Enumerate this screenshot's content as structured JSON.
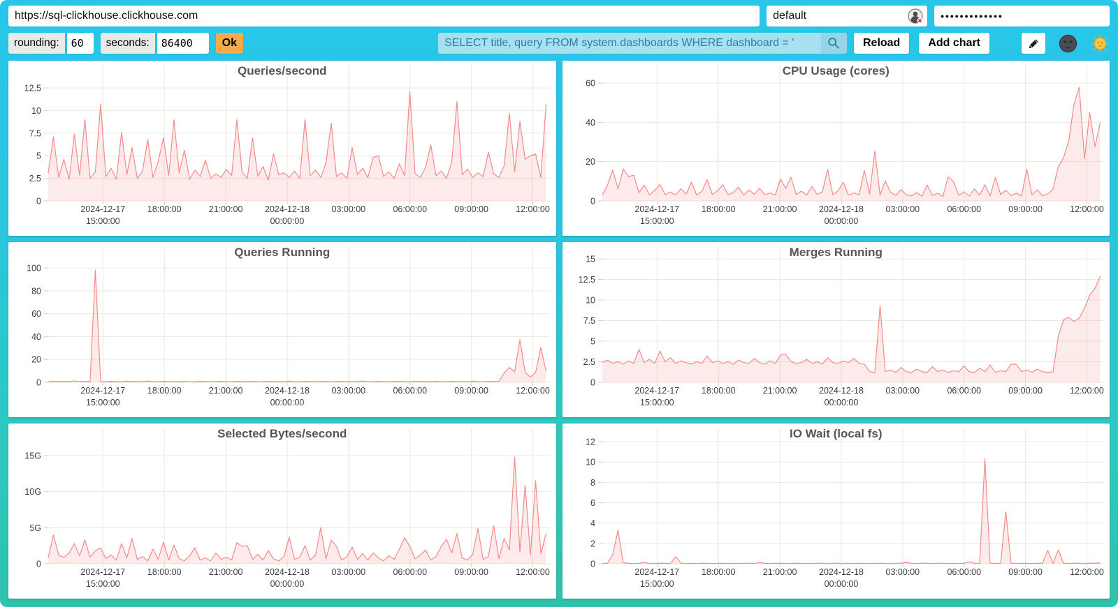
{
  "toolbar": {
    "url": "https://sql-clickhouse.clickhouse.com",
    "user": "default",
    "password_mask": "•••••••••••••",
    "rounding_label": "rounding:",
    "rounding_value": "60",
    "seconds_label": "seconds:",
    "seconds_value": "86400",
    "ok_label": "Ok",
    "query_value": "SELECT title, query FROM system.dashboards WHERE dashboard = '",
    "reload_label": "Reload",
    "add_chart_label": "Add chart",
    "icons": {
      "user_status": "user-icon-with-red-x",
      "search": "magnifier-icon",
      "edit": "pencil-icon",
      "dark_theme": "new-moon-face-icon",
      "light_theme": "sun-with-face-icon"
    }
  },
  "colors": {
    "line": "#F58A8A",
    "fill": "rgba(245,138,138,0.17)",
    "grid": "#ECEADC",
    "tick": "#CFCFC2",
    "axis_text": "#3C3C3C",
    "title_text": "#575757",
    "accent_ok": "#F5AB49",
    "query_bg": "#A8DFF1",
    "query_text": "#2980A2",
    "bg_top": "#28C6E9",
    "bg_bottom": "#2FC2AB"
  },
  "chart_data": {
    "type": "area",
    "grid": true,
    "legend": "none",
    "x_ticks": {
      "fracs": [
        0.11,
        0.2333,
        0.3567,
        0.48,
        0.6033,
        0.7267,
        0.85,
        0.9733
      ],
      "labels": [
        [
          "2024-12-17",
          "15:00:00"
        ],
        [
          "18:00:00"
        ],
        [
          "21:00:00"
        ],
        [
          "2024-12-18",
          "00:00:00"
        ],
        [
          "03:00:00"
        ],
        [
          "06:00:00"
        ],
        [
          "09:00:00"
        ],
        [
          "12:00:00"
        ]
      ]
    },
    "charts": [
      {
        "title": "Queries/second",
        "y_ticks": {
          "values": [
            0,
            2.5,
            5,
            7.5,
            10,
            12.5
          ],
          "labels": [
            "0",
            "2.5",
            "5",
            "7.5",
            "10",
            "12.5"
          ]
        },
        "ylim": [
          0,
          12.5
        ],
        "plot_top": 39,
        "values": [
          3.1,
          7.1,
          2.6,
          4.6,
          2.4,
          7.4,
          2.8,
          9.0,
          2.5,
          3.2,
          10.7,
          2.7,
          3.6,
          2.4,
          7.6,
          2.9,
          5.9,
          2.5,
          3.3,
          6.8,
          2.6,
          4.4,
          7.0,
          2.8,
          9.0,
          3.1,
          5.6,
          2.4,
          3.4,
          2.7,
          4.5,
          2.5,
          3.0,
          2.6,
          3.5,
          2.8,
          9.0,
          3.2,
          2.5,
          7.0,
          2.7,
          3.8,
          2.3,
          5.2,
          2.9,
          3.1,
          2.6,
          3.3,
          2.5,
          9.0,
          2.8,
          3.4,
          2.6,
          4.2,
          8.6,
          2.7,
          3.1,
          2.5,
          5.9,
          2.9,
          3.6,
          2.6,
          4.8,
          5.0,
          2.7,
          3.2,
          2.5,
          4.1,
          2.8,
          12.1,
          3.0,
          2.6,
          3.7,
          6.2,
          2.8,
          3.3,
          2.5,
          4.3,
          11.0,
          2.9,
          3.5,
          2.6,
          3.1,
          2.7,
          5.4,
          3.0,
          2.6,
          3.9,
          9.7,
          3.2,
          8.8,
          4.6,
          5.0,
          5.2,
          2.6,
          10.7
        ]
      },
      {
        "title": "CPU Usage (cores)",
        "y_ticks": {
          "values": [
            0,
            20,
            40,
            60
          ],
          "labels": [
            "0",
            "20",
            "40",
            "60"
          ]
        },
        "ylim": [
          0,
          60
        ],
        "plot_top": 32,
        "values": [
          3.0,
          8.2,
          15.8,
          6.1,
          16.2,
          12.4,
          13.1,
          4.2,
          8.0,
          3.1,
          5.4,
          8.3,
          3.2,
          4.5,
          2.9,
          6.2,
          3.4,
          9.6,
          3.0,
          4.8,
          10.8,
          3.3,
          5.1,
          8.2,
          3.1,
          4.3,
          7.0,
          3.0,
          5.6,
          3.4,
          6.4,
          3.1,
          4.0,
          2.9,
          11.2,
          6.3,
          12.1,
          3.2,
          5.0,
          3.0,
          7.3,
          3.3,
          4.6,
          16.0,
          3.1,
          5.2,
          9.4,
          2.9,
          4.1,
          3.2,
          15.5,
          3.6,
          25.5,
          3.0,
          10.2,
          4.4,
          2.8,
          5.8,
          3.1,
          2.6,
          4.2,
          2.4,
          8.1,
          2.7,
          3.9,
          2.3,
          12.3,
          9.8,
          2.8,
          4.6,
          2.5,
          6.1,
          3.0,
          8.2,
          2.6,
          12.0,
          3.3,
          5.4,
          2.7,
          4.0,
          2.5,
          16.2,
          3.1,
          5.7,
          2.6,
          3.4,
          6.0,
          17.5,
          22.0,
          30.5,
          49.3,
          57.8,
          21.5,
          45.0,
          27.6,
          39.8
        ]
      },
      {
        "title": "Queries Running",
        "y_ticks": {
          "values": [
            0,
            20,
            40,
            60,
            80,
            100
          ],
          "labels": [
            "0",
            "20",
            "40",
            "60",
            "80",
            "100"
          ]
        },
        "ylim": [
          0,
          100
        ],
        "plot_top": 37,
        "values": [
          0.6,
          1.0,
          0.5,
          0.8,
          0.6,
          1.2,
          0.5,
          0.9,
          0.6,
          98.0,
          0.7,
          0.5,
          0.8,
          0.6,
          0.5,
          0.9,
          0.6,
          0.7,
          0.5,
          1.1,
          0.6,
          0.5,
          0.8,
          0.6,
          0.7,
          0.5,
          0.9,
          0.6,
          0.5,
          0.8,
          0.6,
          0.7,
          0.5,
          1.0,
          0.6,
          0.5,
          0.8,
          0.7,
          0.5,
          0.9,
          0.6,
          0.5,
          0.8,
          0.6,
          0.7,
          0.5,
          1.0,
          0.6,
          0.5,
          0.8,
          0.6,
          0.7,
          0.5,
          0.9,
          0.6,
          0.5,
          0.8,
          0.6,
          0.7,
          0.5,
          1.1,
          0.6,
          0.5,
          0.8,
          0.6,
          0.7,
          0.5,
          0.9,
          0.6,
          0.5,
          0.8,
          0.6,
          0.7,
          0.5,
          1.0,
          0.6,
          0.5,
          0.8,
          0.6,
          0.7,
          0.5,
          0.9,
          0.6,
          0.5,
          0.8,
          0.6,
          0.9,
          8.2,
          13.0,
          9.2,
          37.2,
          8.8,
          4.6,
          8.4,
          30.5,
          9.6
        ]
      },
      {
        "title": "Merges Running",
        "y_ticks": {
          "values": [
            0,
            2.5,
            5,
            7.5,
            10,
            12.5,
            15
          ],
          "labels": [
            "0",
            "2.5",
            "5",
            "7.5",
            "10",
            "12.5",
            "15"
          ]
        },
        "ylim": [
          0,
          15
        ],
        "plot_top": 24,
        "values": [
          2.4,
          2.7,
          2.3,
          2.5,
          2.2,
          2.6,
          2.3,
          4.0,
          2.4,
          2.8,
          2.3,
          3.8,
          2.5,
          3.0,
          2.3,
          2.6,
          2.4,
          2.2,
          2.5,
          2.3,
          3.2,
          2.4,
          2.6,
          2.3,
          2.5,
          2.2,
          2.7,
          2.4,
          2.3,
          2.9,
          2.4,
          2.2,
          2.6,
          2.3,
          3.3,
          3.4,
          2.5,
          2.3,
          2.4,
          2.8,
          2.3,
          2.5,
          2.2,
          3.0,
          2.4,
          2.3,
          2.6,
          2.4,
          2.9,
          2.3,
          2.2,
          1.3,
          1.2,
          9.3,
          1.3,
          1.5,
          1.2,
          1.8,
          1.3,
          1.2,
          1.6,
          1.3,
          1.2,
          1.9,
          1.3,
          1.5,
          1.2,
          1.4,
          1.3,
          2.0,
          1.3,
          1.2,
          1.7,
          1.3,
          2.1,
          1.2,
          1.4,
          1.3,
          2.2,
          2.2,
          1.3,
          1.5,
          1.2,
          1.6,
          1.3,
          1.2,
          1.3,
          5.6,
          7.6,
          7.9,
          7.4,
          7.8,
          9.0,
          10.6,
          11.4,
          12.9
        ]
      },
      {
        "title": "Selected Bytes/second",
        "y_ticks": {
          "values": [
            0,
            5,
            10,
            15
          ],
          "labels": [
            "0",
            "5G",
            "10G",
            "15G"
          ]
        },
        "ylim": [
          0,
          15
        ],
        "plot_top": 46,
        "unit": "G",
        "values": [
          0.8,
          4.0,
          1.2,
          0.9,
          1.5,
          2.8,
          1.1,
          3.3,
          0.9,
          1.8,
          2.2,
          0.7,
          1.2,
          0.5,
          2.8,
          0.8,
          3.5,
          0.6,
          1.0,
          0.4,
          2.0,
          0.6,
          3.0,
          0.5,
          2.6,
          0.7,
          0.4,
          1.1,
          2.2,
          0.5,
          0.8,
          0.4,
          1.5,
          0.6,
          0.9,
          0.5,
          2.9,
          2.4,
          2.5,
          0.6,
          1.3,
          0.5,
          1.8,
          0.7,
          0.4,
          1.0,
          3.7,
          0.6,
          0.9,
          2.5,
          0.5,
          1.2,
          5.0,
          0.7,
          3.3,
          2.4,
          0.5,
          1.0,
          2.3,
          0.6,
          1.4,
          0.5,
          1.5,
          0.8,
          0.4,
          1.1,
          0.6,
          2.0,
          3.6,
          2.4,
          0.7,
          1.2,
          1.9,
          0.5,
          1.0,
          2.4,
          3.4,
          1.5,
          4.2,
          0.8,
          0.5,
          1.3,
          4.9,
          0.6,
          1.0,
          5.3,
          0.7,
          3.5,
          1.9,
          14.8,
          1.6,
          10.9,
          1.2,
          11.5,
          1.4,
          4.2
        ]
      },
      {
        "title": "IO Wait (local fs)",
        "y_ticks": {
          "values": [
            0,
            2,
            4,
            6,
            8,
            10,
            12
          ],
          "labels": [
            "0",
            "2",
            "4",
            "6",
            "8",
            "10",
            "12"
          ]
        },
        "ylim": [
          0,
          12
        ],
        "plot_top": 26,
        "values": [
          0.03,
          0.05,
          0.9,
          3.3,
          0.1,
          0.04,
          0.03,
          0.05,
          0.12,
          0.04,
          0.03,
          0.05,
          0.04,
          0.03,
          0.7,
          0.05,
          0.03,
          0.04,
          0.03,
          0.05,
          0.04,
          0.03,
          0.04,
          0.05,
          0.03,
          0.04,
          0.03,
          0.05,
          0.04,
          0.03,
          0.1,
          0.04,
          0.03,
          0.05,
          0.04,
          0.03,
          0.04,
          0.05,
          0.03,
          0.04,
          0.03,
          0.05,
          0.04,
          0.03,
          0.04,
          0.05,
          0.03,
          0.04,
          0.03,
          0.05,
          0.04,
          0.03,
          0.04,
          0.05,
          0.03,
          0.04,
          0.03,
          0.05,
          0.12,
          0.04,
          0.03,
          0.05,
          0.04,
          0.03,
          0.04,
          0.05,
          0.03,
          0.04,
          0.03,
          0.05,
          0.2,
          0.04,
          0.03,
          10.3,
          0.05,
          0.04,
          0.03,
          5.1,
          0.04,
          0.03,
          0.05,
          0.04,
          0.03,
          0.05,
          0.04,
          1.3,
          0.04,
          1.35,
          0.04,
          0.03,
          0.05,
          0.04,
          0.03,
          0.05,
          0.04,
          0.08
        ]
      }
    ]
  }
}
